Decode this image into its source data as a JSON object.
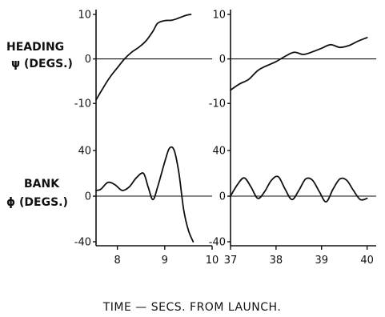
{
  "figure": {
    "x_title": "TIME — SECS.   FROM  LAUNCH.",
    "heading_label": {
      "line1": "HEADING",
      "line2": "ψ (DEGS.)"
    },
    "bank_label": {
      "line1": "BANK",
      "line2": "ϕ (DEGS.)"
    }
  },
  "chart_data": [
    {
      "type": "line",
      "panel": "heading-left",
      "title": "",
      "xlabel": "",
      "ylabel": "HEADING ψ (DEGS.)",
      "xlim": [
        7.55,
        10
      ],
      "ylim": [
        -10.5,
        10
      ],
      "yticks": [
        10,
        0,
        -10
      ],
      "ytick_labels": [
        "10",
        "0",
        "-10"
      ],
      "zero_line": true,
      "series": [
        {
          "x": [
            7.55,
            7.7,
            7.85,
            8.0,
            8.15,
            8.3,
            8.45,
            8.6,
            8.75,
            8.85,
            9.0,
            9.15,
            9.3,
            9.45,
            9.55
          ],
          "y": [
            -9.2,
            -6.5,
            -4.0,
            -2.0,
            0.0,
            1.5,
            2.6,
            4.0,
            6.2,
            8.0,
            8.6,
            8.7,
            9.2,
            9.8,
            10.0
          ]
        }
      ]
    },
    {
      "type": "line",
      "panel": "heading-right",
      "title": "",
      "xlabel": "",
      "ylabel": "",
      "xlim": [
        37,
        40.2
      ],
      "ylim": [
        -10.5,
        10
      ],
      "yticks": [
        10,
        0,
        -10
      ],
      "ytick_labels": [
        "10",
        "0",
        "-10"
      ],
      "zero_line": true,
      "series": [
        {
          "x": [
            37.0,
            37.2,
            37.4,
            37.6,
            37.8,
            38.0,
            38.2,
            38.4,
            38.6,
            38.8,
            39.0,
            39.2,
            39.4,
            39.6,
            39.8,
            40.0
          ],
          "y": [
            -7.0,
            -5.6,
            -4.6,
            -2.6,
            -1.5,
            -0.6,
            0.6,
            1.5,
            1.0,
            1.6,
            2.4,
            3.2,
            2.6,
            3.0,
            4.0,
            4.8
          ]
        }
      ]
    },
    {
      "type": "line",
      "panel": "bank-left",
      "title": "",
      "xlabel": "",
      "ylabel": "BANK ϕ (DEGS.)",
      "xlim": [
        7.55,
        10
      ],
      "ylim": [
        -40,
        40
      ],
      "yticks": [
        40,
        0,
        -40
      ],
      "ytick_labels": [
        "40",
        "0",
        "-40"
      ],
      "xticks": [
        8,
        9,
        10
      ],
      "xtick_labels": [
        "8",
        "9",
        "10"
      ],
      "zero_line": true,
      "series": [
        {
          "x": [
            7.55,
            7.65,
            7.8,
            7.95,
            8.1,
            8.25,
            8.4,
            8.55,
            8.65,
            8.75,
            8.85,
            9.0,
            9.1,
            9.2,
            9.3,
            9.4,
            9.5,
            9.6
          ],
          "y": [
            5,
            6,
            12,
            10,
            5,
            8,
            16,
            20,
            8,
            -3,
            8,
            30,
            42,
            40,
            20,
            -12,
            -30,
            -40
          ]
        }
      ]
    },
    {
      "type": "line",
      "panel": "bank-right",
      "title": "",
      "xlabel": "",
      "ylabel": "",
      "xlim": [
        37,
        40.2
      ],
      "ylim": [
        -40,
        40
      ],
      "yticks": [
        40,
        0,
        -40
      ],
      "ytick_labels": [
        "40",
        "0",
        "-40"
      ],
      "xticks": [
        37,
        38,
        39,
        40
      ],
      "xtick_labels": [
        "37",
        "38",
        "39",
        "40"
      ],
      "zero_line": true,
      "series": [
        {
          "x": [
            37.0,
            37.15,
            37.3,
            37.45,
            37.6,
            37.75,
            37.9,
            38.05,
            38.2,
            38.35,
            38.5,
            38.65,
            38.8,
            38.95,
            39.1,
            39.25,
            39.4,
            39.55,
            39.7,
            39.85,
            40.0
          ],
          "y": [
            0,
            10,
            16,
            8,
            -2,
            4,
            14,
            17,
            6,
            -3,
            5,
            15,
            14,
            4,
            -5,
            6,
            15,
            14,
            5,
            -3,
            -2
          ]
        }
      ]
    }
  ]
}
